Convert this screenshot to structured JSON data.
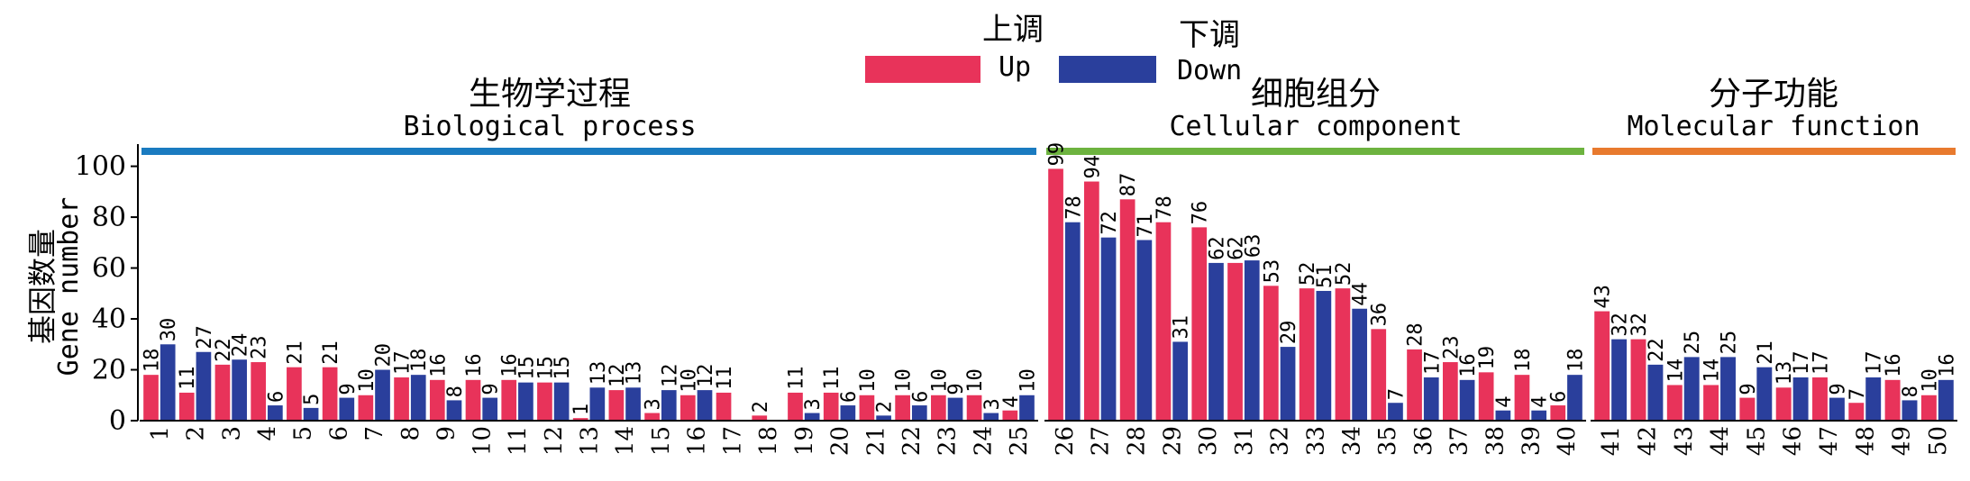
{
  "chart_data": {
    "type": "bar",
    "ylabel_cn": "基因数量",
    "ylabel_en": "Gene number",
    "ylim": [
      0,
      108
    ],
    "yticks": [
      0,
      20,
      40,
      60,
      80,
      100
    ],
    "legend": {
      "placement": "top-center",
      "up_cn": "上调",
      "up_en": "Up",
      "down_cn": "下调",
      "down_en": "Down"
    },
    "colors": {
      "up": "#E8335A",
      "down": "#2A3F9C"
    },
    "categories": [
      "1",
      "2",
      "3",
      "4",
      "5",
      "6",
      "7",
      "8",
      "9",
      "10",
      "11",
      "12",
      "13",
      "14",
      "15",
      "16",
      "17",
      "18",
      "19",
      "20",
      "21",
      "22",
      "23",
      "24",
      "25",
      "26",
      "27",
      "28",
      "29",
      "30",
      "31",
      "32",
      "33",
      "34",
      "35",
      "36",
      "37",
      "38",
      "39",
      "40",
      "41",
      "42",
      "43",
      "44",
      "45",
      "46",
      "47",
      "48",
      "49",
      "50"
    ],
    "series": [
      {
        "name": "Up",
        "values": [
          18,
          11,
          22,
          23,
          21,
          21,
          10,
          17,
          16,
          16,
          16,
          15,
          1,
          12,
          3,
          10,
          11,
          2,
          11,
          11,
          10,
          10,
          10,
          10,
          4,
          99,
          94,
          87,
          78,
          76,
          62,
          53,
          52,
          52,
          36,
          28,
          23,
          19,
          18,
          6,
          43,
          32,
          14,
          14,
          9,
          13,
          17,
          7,
          16,
          10
        ]
      },
      {
        "name": "Down",
        "values": [
          30,
          27,
          24,
          6,
          5,
          9,
          20,
          18,
          8,
          9,
          15,
          15,
          13,
          13,
          12,
          12,
          0,
          0,
          3,
          6,
          2,
          6,
          9,
          3,
          10,
          78,
          72,
          71,
          31,
          62,
          63,
          29,
          51,
          44,
          7,
          17,
          16,
          4,
          4,
          18,
          32,
          22,
          25,
          25,
          21,
          17,
          9,
          17,
          8,
          16
        ]
      }
    ],
    "groups": [
      {
        "cn": "生物学过程",
        "en": "Biological process",
        "color": "#1A7BC0",
        "range": [
          1,
          25
        ]
      },
      {
        "cn": "细胞组分",
        "en": "Cellular component",
        "color": "#6DB33F",
        "range": [
          26,
          40
        ]
      },
      {
        "cn": "分子功能",
        "en": "Molecular function",
        "color": "#E87A2E",
        "range": [
          41,
          50
        ]
      }
    ]
  }
}
